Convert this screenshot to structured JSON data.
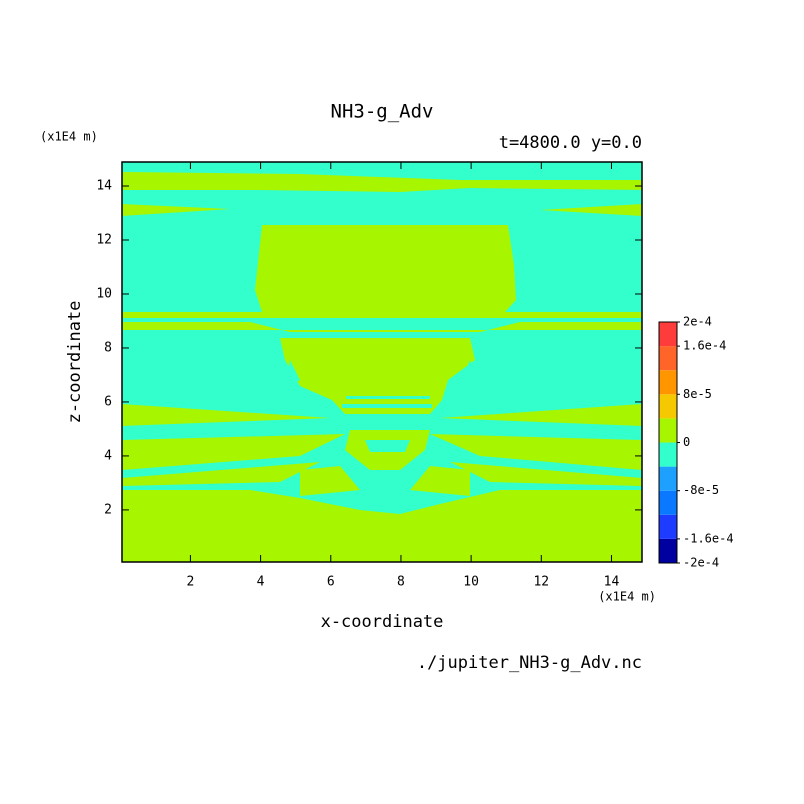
{
  "chart_data": {
    "type": "contour",
    "title": "NH3-g_Adv",
    "subtitle": "t=4800.0 y=0.0",
    "x_label": "x-coordinate",
    "y_label": "z-coordinate",
    "x_unit": "(x1E4 m)",
    "y_unit": "(x1E4 m)",
    "footer": "./jupiter_NH3-g_Adv.nc",
    "xlim": [
      0.05,
      14.87
    ],
    "ylim": [
      0.07,
      14.89
    ],
    "xticks": [
      2,
      4,
      6,
      8,
      10,
      12,
      14
    ],
    "yticks": [
      2,
      4,
      6,
      8,
      10,
      12,
      14
    ],
    "colorbar": {
      "clim": [
        -0.0002,
        0.0002
      ],
      "ticks": [
        {
          "value": 0.0002,
          "label": "2e-4"
        },
        {
          "value": 0.00016,
          "label": "1.6e-4"
        },
        {
          "value": 8e-05,
          "label": "8e-5"
        },
        {
          "value": 0,
          "label": "0"
        },
        {
          "value": -8e-05,
          "label": "-8e-5"
        },
        {
          "value": -0.00016,
          "label": "-1.6e-4"
        },
        {
          "value": -0.0002,
          "label": "-2e-4"
        }
      ],
      "colors": [
        "#0000a0",
        "#1e3cff",
        "#0a78ff",
        "#1ea0ff",
        "#33ffcc",
        "#a8f500",
        "#f5c800",
        "#ff9600",
        "#ff6428",
        "#ff3c3c"
      ]
    }
  }
}
